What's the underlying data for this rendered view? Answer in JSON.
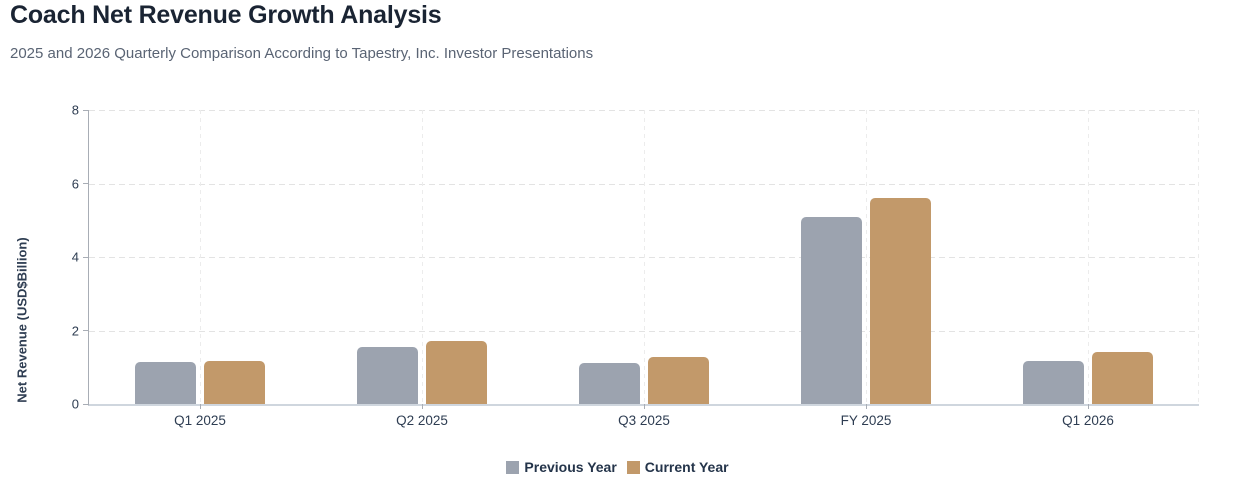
{
  "header": {
    "title": "Coach Net Revenue Growth Analysis",
    "subtitle": "2025 and 2026 Quarterly Comparison According to Tapestry, Inc. Investor Presentations"
  },
  "chart_data": {
    "type": "bar",
    "title": "Coach Net Revenue Growth Analysis",
    "categories": [
      "Q1 2025",
      "Q2 2025",
      "Q3 2025",
      "FY 2025",
      "Q1 2026"
    ],
    "series": [
      {
        "name": "Previous Year",
        "color": "#9ca3af",
        "values": [
          1.15,
          1.54,
          1.12,
          5.09,
          1.17
        ]
      },
      {
        "name": "Current Year",
        "color": "#c2996a",
        "values": [
          1.17,
          1.71,
          1.28,
          5.61,
          1.42
        ]
      }
    ],
    "xlabel": "",
    "ylabel": "Net Revenue (USD$Billion)",
    "ylim": [
      0,
      8
    ],
    "yticks": [
      0,
      2,
      4,
      6,
      8
    ],
    "grid": true,
    "legend_position": "bottom",
    "colors": {
      "title_text": "#1a2433",
      "subtitle_text": "#5a6474",
      "axis_text": "#2e3d52",
      "legend_text": "#24344a",
      "axis_line": "#a8adb5",
      "baseline": "#cfd6de",
      "gridline": "#e3e3e3",
      "background": "#ffffff"
    }
  }
}
